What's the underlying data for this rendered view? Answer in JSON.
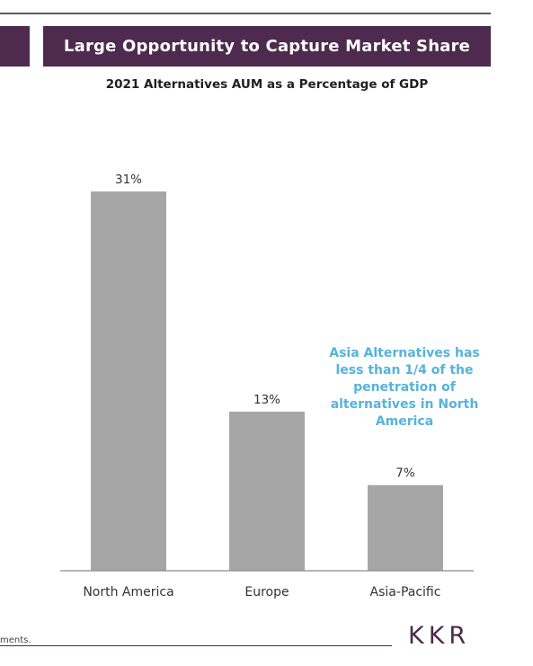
{
  "header": {
    "title": "Large Opportunity to Capture Market Share",
    "subtitle": "2021 Alternatives AUM as a Percentage of GDP"
  },
  "chart_data": {
    "type": "bar",
    "title": "2021 Alternatives AUM as a Percentage of GDP",
    "categories": [
      "North America",
      "Europe",
      "Asia-Pacific"
    ],
    "values": [
      31,
      13,
      7
    ],
    "data_labels": [
      "31%",
      "13%",
      "7%"
    ],
    "unit": "%",
    "ylim": [
      0,
      33.5
    ],
    "bar_color": "#a6a6a6",
    "grid": false,
    "legend": "none"
  },
  "callout": {
    "text": "Asia Alternatives has less than 1/4 of the penetration of alternatives in North America",
    "color": "#55b3dc"
  },
  "footer": {
    "footnote": "ments.",
    "logo": "KKR"
  },
  "colors": {
    "brand_purple": "#4e2a4f",
    "bar_gray": "#a6a6a6"
  }
}
